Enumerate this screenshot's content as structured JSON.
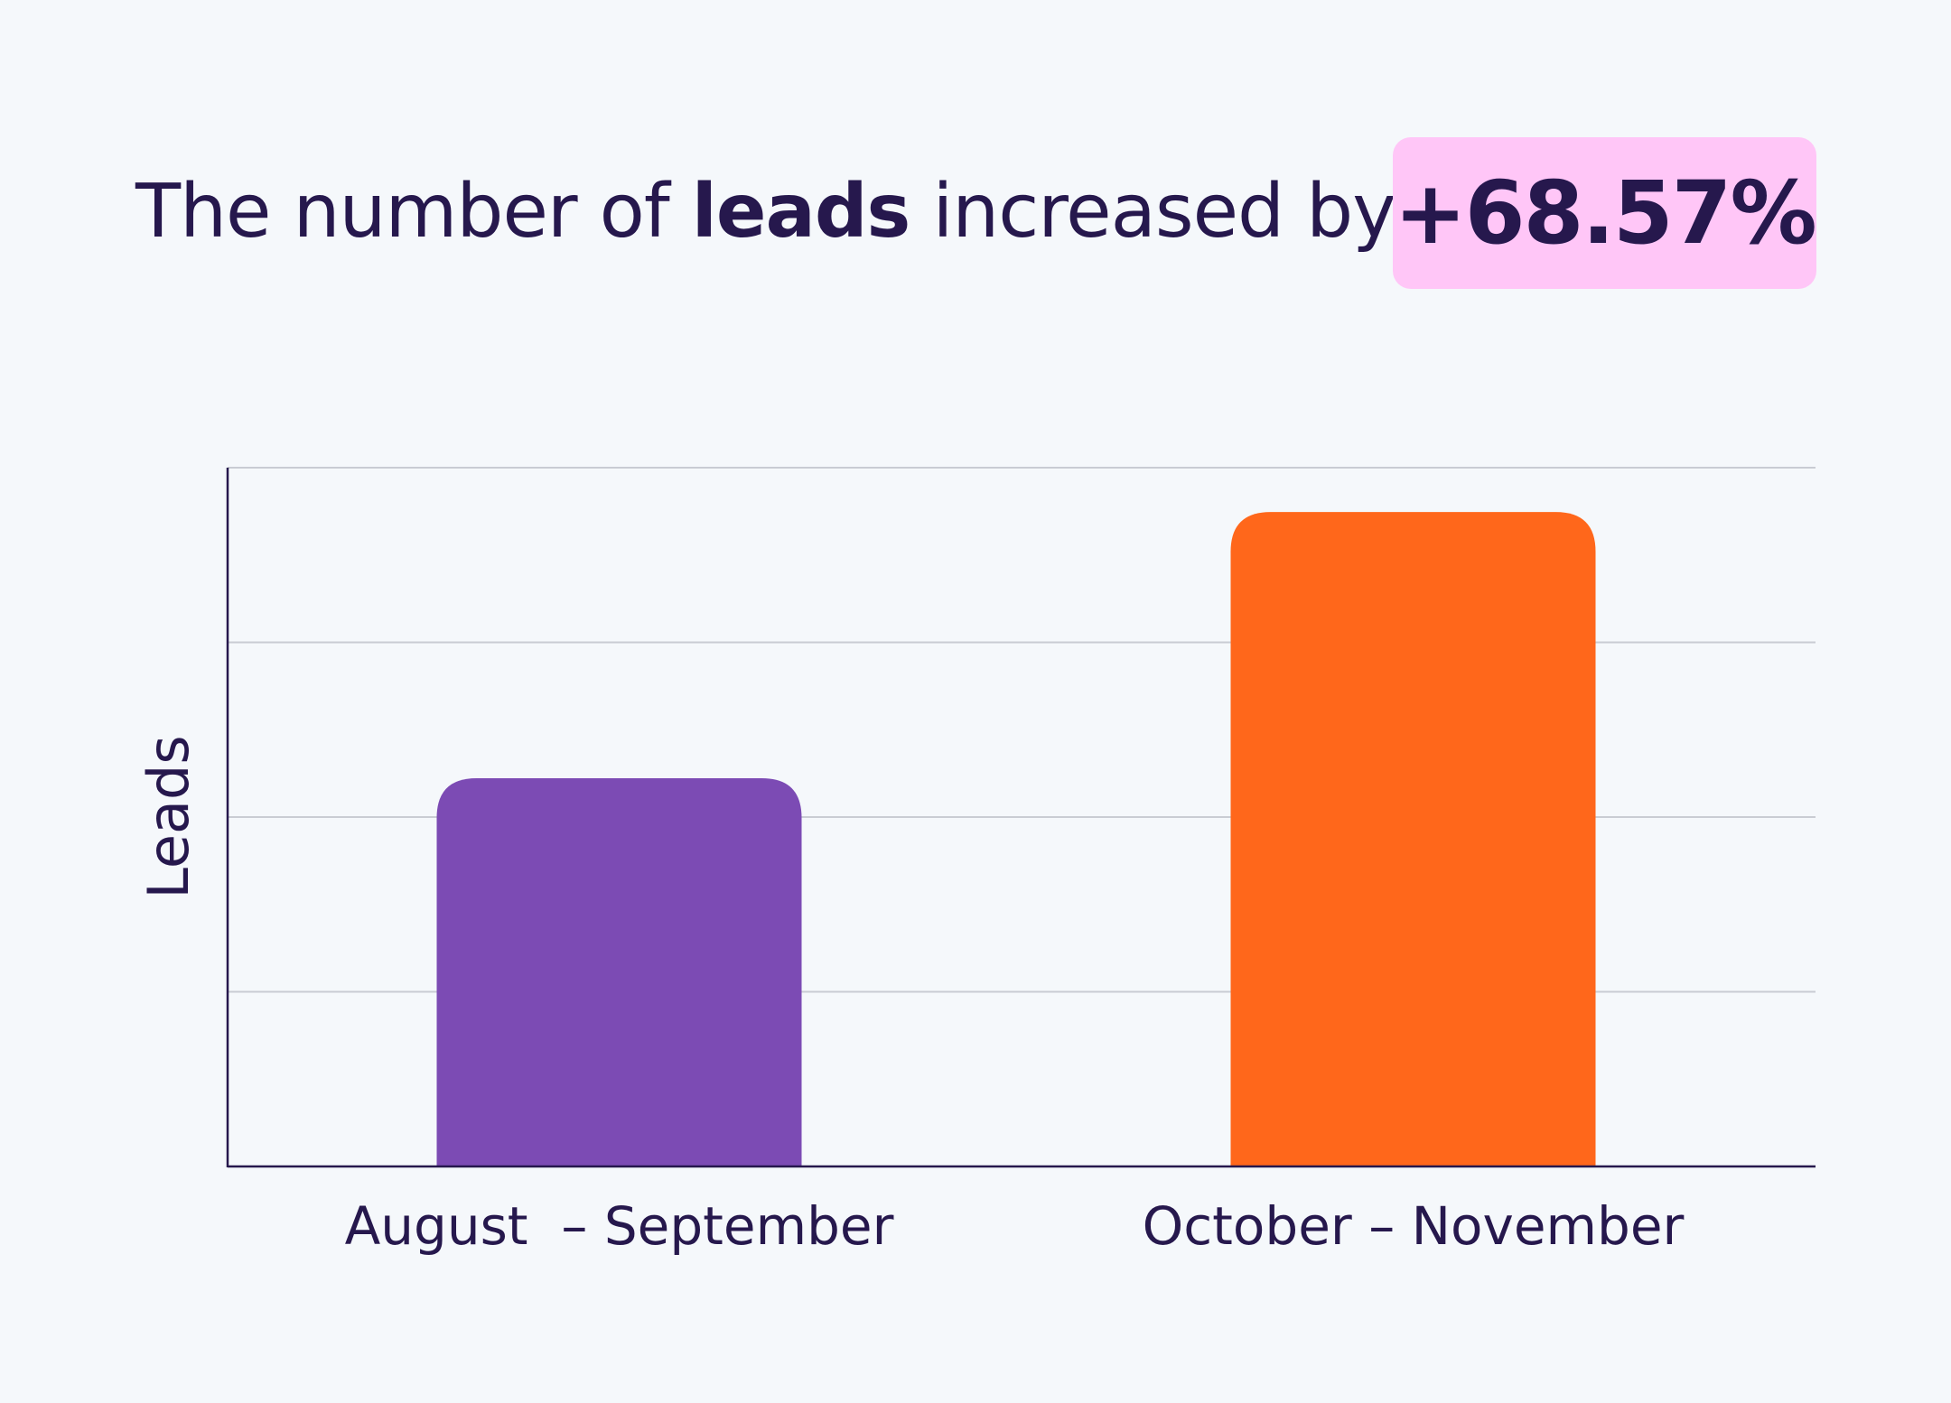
{
  "headline": {
    "prefix": "The number of",
    "emphasis": "leads",
    "suffix": "increased by",
    "badge": "+68.57%"
  },
  "colors": {
    "background": "#f5f8fb",
    "text": "#26184d",
    "badge_bg": "#ffc6f7",
    "gridline": "#c9ccd3",
    "axis": "#26184d"
  },
  "chart_data": {
    "type": "bar",
    "title": "The number of leads increased by +68.57%",
    "xlabel": "",
    "ylabel": "Leads",
    "categories": [
      "August  – September",
      "October – November"
    ],
    "values": [
      1,
      1.6857
    ],
    "bar_colors": [
      "#7c4bb4",
      "#ff671b"
    ],
    "ylim": [
      0,
      1.8
    ],
    "grid": true,
    "y_tick_labels": false,
    "legend": "none"
  }
}
